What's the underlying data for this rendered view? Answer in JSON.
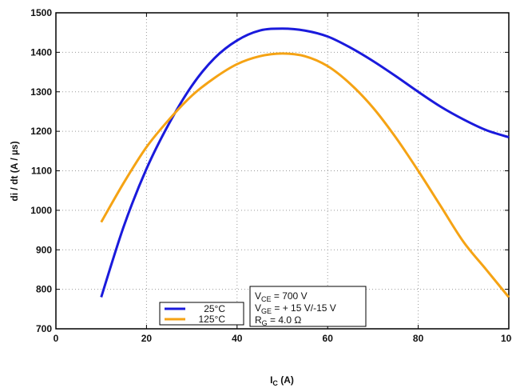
{
  "chart_data": {
    "type": "line",
    "y_label": "di / dt (A / µs)",
    "x_label": {
      "main": "I",
      "sub": "C",
      "rest": " (A)"
    },
    "x": [
      10,
      15,
      20,
      25,
      30,
      35,
      40,
      45,
      50,
      55,
      60,
      65,
      70,
      75,
      80,
      85,
      90,
      95,
      100
    ],
    "series": [
      {
        "name": "25°C",
        "color": "#1a1adc",
        "values": [
          780,
          960,
          1105,
          1220,
          1315,
          1385,
          1430,
          1455,
          1460,
          1455,
          1440,
          1412,
          1378,
          1340,
          1300,
          1262,
          1230,
          1203,
          1185
        ]
      },
      {
        "name": "125°C",
        "color": "#f5a314",
        "values": [
          970,
          1070,
          1160,
          1230,
          1290,
          1335,
          1370,
          1390,
          1397,
          1390,
          1365,
          1320,
          1260,
          1185,
          1100,
          1010,
          920,
          850,
          780
        ]
      }
    ],
    "xlim": [
      0,
      100
    ],
    "xticks": [
      0,
      20,
      40,
      60,
      80,
      100
    ],
    "ylim": [
      700,
      1500
    ],
    "yticks": [
      700,
      800,
      900,
      1000,
      1100,
      1200,
      1300,
      1400,
      1500
    ],
    "grid": true,
    "annotation": [
      {
        "main": "V",
        "sub": "CE",
        "rest": " = 700 V"
      },
      {
        "main": "V",
        "sub": "GE",
        "rest": " = + 15 V/-15 V"
      },
      {
        "main": "R",
        "sub": "G",
        "rest": " = 4.0 Ω"
      }
    ]
  }
}
